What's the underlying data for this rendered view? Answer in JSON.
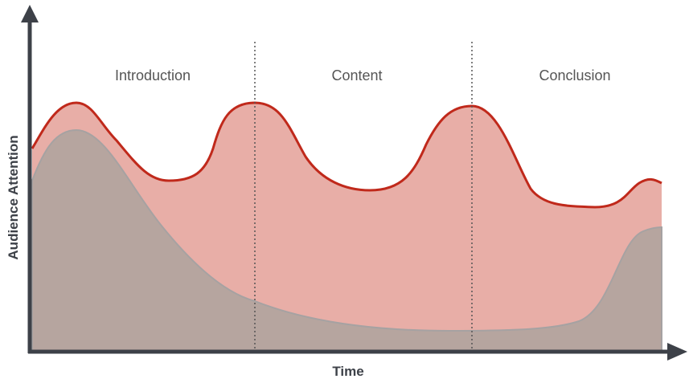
{
  "y_axis_label": "Audience Attention",
  "x_axis_label": "Time",
  "sections": [
    "Introduction",
    "Content",
    "Conclusion"
  ]
}
